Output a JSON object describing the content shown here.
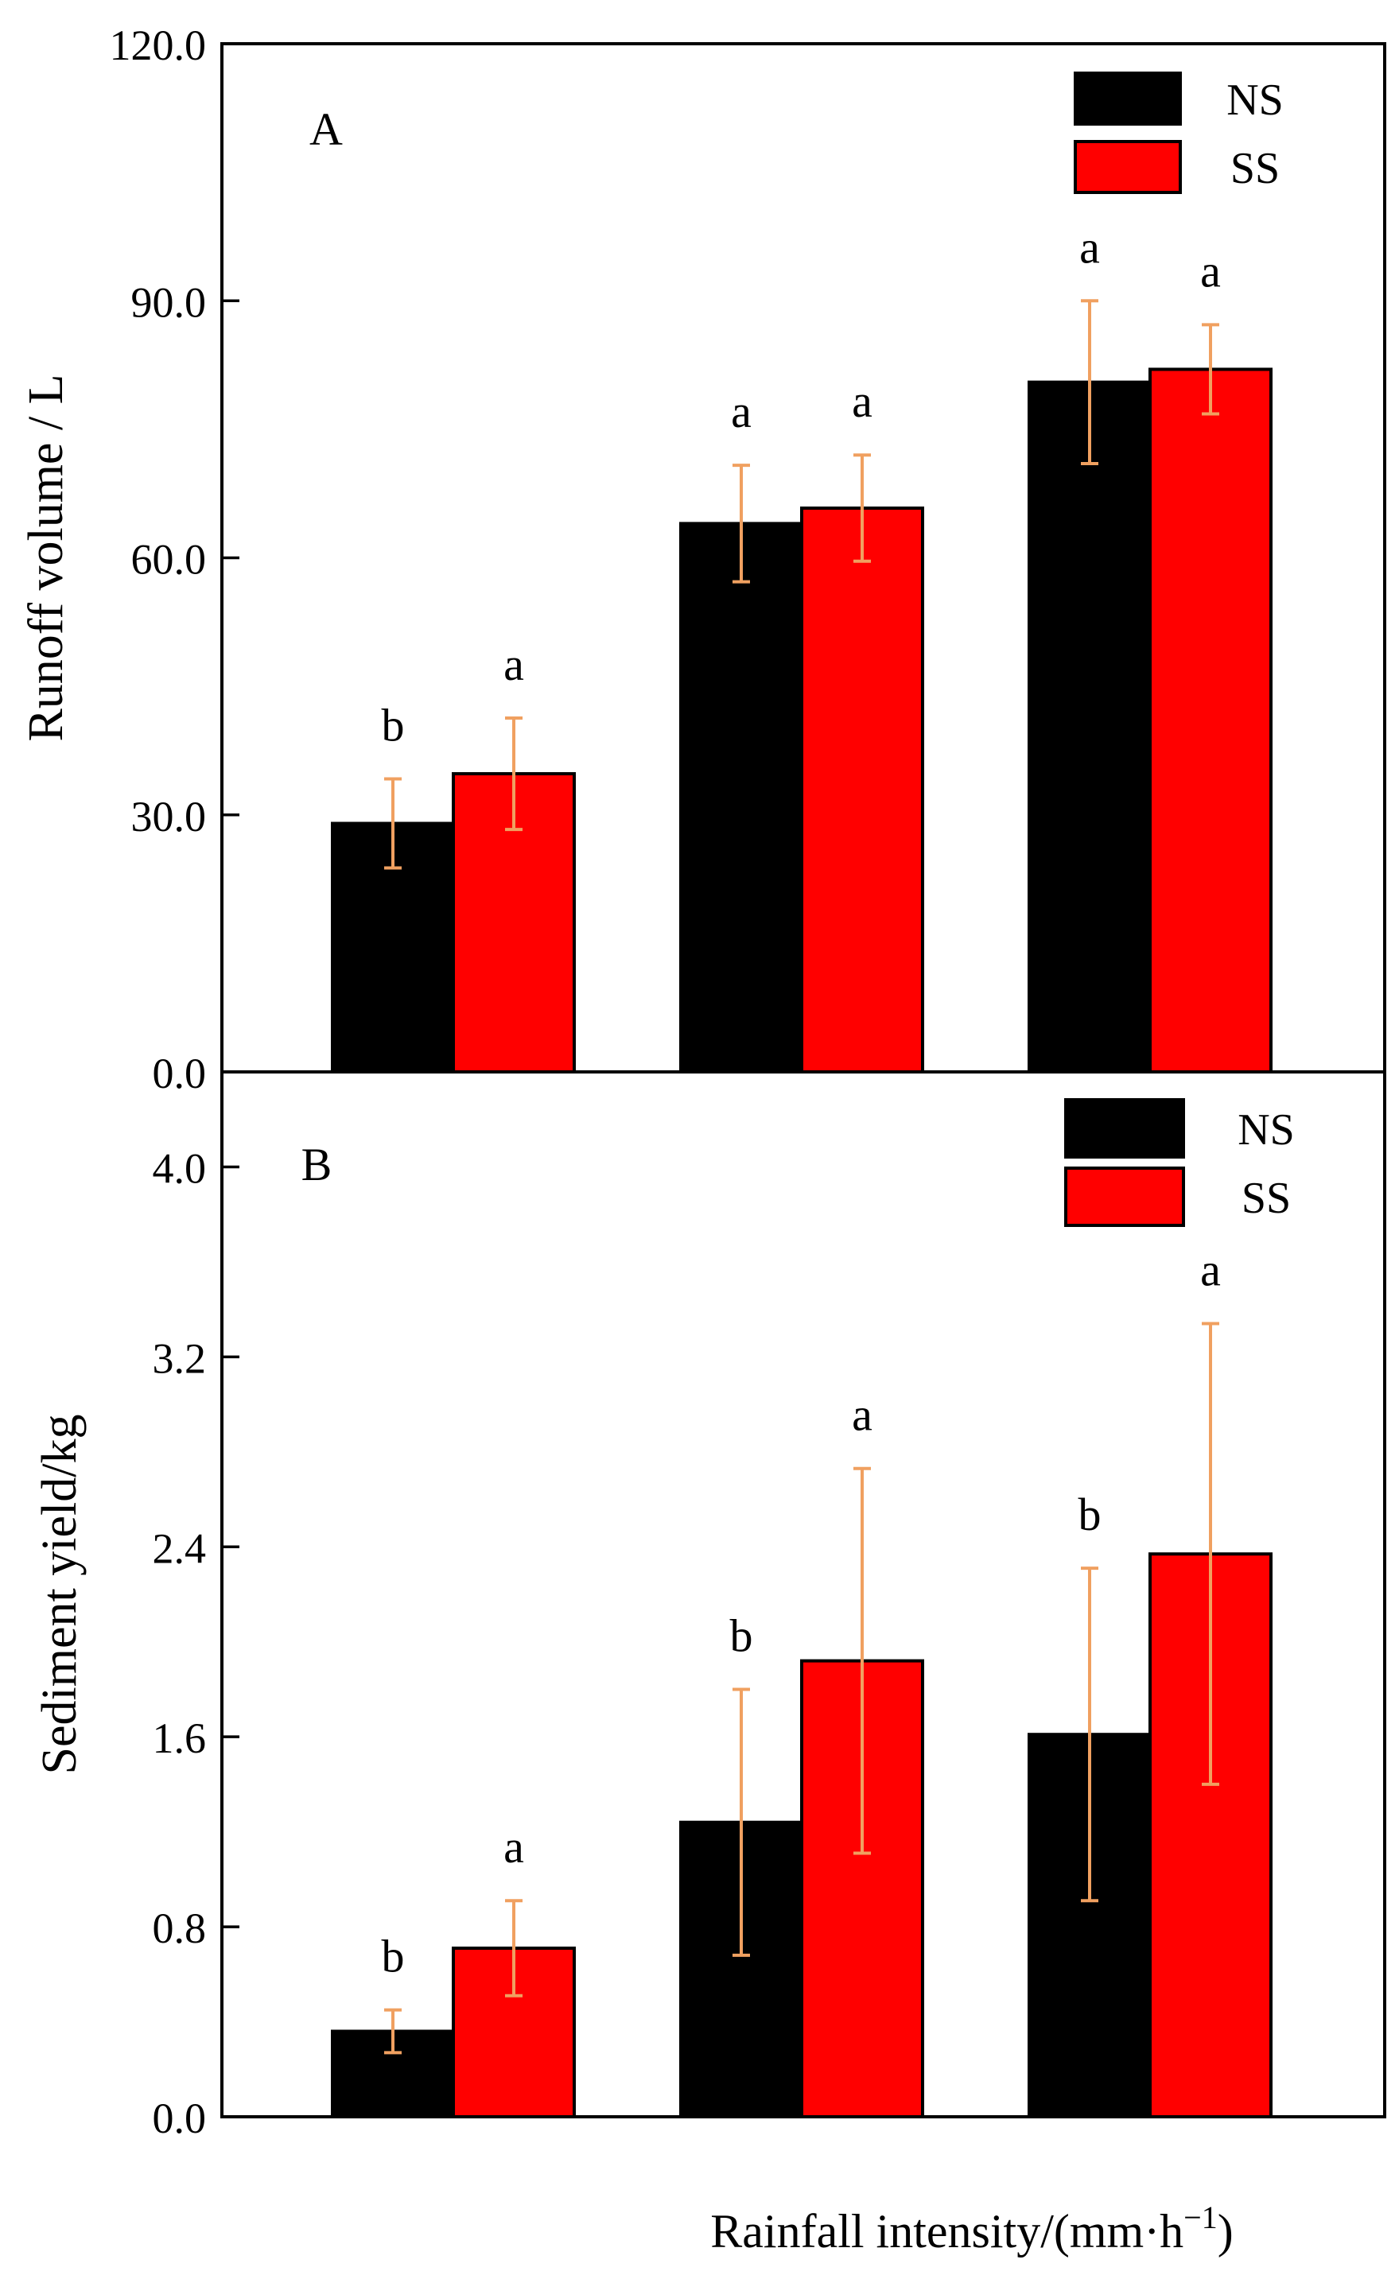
{
  "colors": {
    "ns": "#000000",
    "ss": "#ff0000",
    "error_bar": "#f0a060",
    "frame": "#000000"
  },
  "xlabel": "Rainfall intensity/(mm·h",
  "xlabel_sup": "−1",
  "xlabel_close": ")",
  "chart_data": [
    {
      "type": "bar",
      "panel_label": "A",
      "ylabel": "Runoff volume / L",
      "ylim": [
        0,
        120
      ],
      "yticks": [
        "0.0",
        "30.0",
        "60.0",
        "90.0",
        "120.0"
      ],
      "ytick_values": [
        0,
        30,
        60,
        90,
        120
      ],
      "categories": [
        "",
        "",
        ""
      ],
      "legend": [
        "NS",
        "SS"
      ],
      "legend_position": "top-right",
      "series": [
        {
          "name": "NS",
          "values": [
            29.0,
            64.0,
            80.5
          ],
          "errors": [
            5.2,
            6.8,
            9.5
          ],
          "letters": [
            "b",
            "a",
            "a"
          ]
        },
        {
          "name": "SS",
          "values": [
            34.8,
            65.8,
            82.0
          ],
          "errors": [
            6.5,
            6.2,
            5.2
          ],
          "letters": [
            "a",
            "a",
            "a"
          ]
        }
      ]
    },
    {
      "type": "bar",
      "panel_label": "B",
      "ylabel": "Sediment yield/kg",
      "ylim": [
        0,
        4.4
      ],
      "yticks": [
        "0.0",
        "0.8",
        "1.6",
        "2.4",
        "3.2",
        "4.0"
      ],
      "ytick_values": [
        0,
        0.8,
        1.6,
        2.4,
        3.2,
        4.0
      ],
      "categories": [
        "",
        "",
        ""
      ],
      "legend": [
        "NS",
        "SS"
      ],
      "legend_position": "top-right",
      "series": [
        {
          "name": "NS",
          "values": [
            0.36,
            1.24,
            1.61
          ],
          "errors": [
            0.09,
            0.56,
            0.7
          ],
          "letters": [
            "b",
            "b",
            "b"
          ]
        },
        {
          "name": "SS",
          "values": [
            0.71,
            1.92,
            2.37
          ],
          "errors": [
            0.2,
            0.81,
            0.97
          ],
          "letters": [
            "a",
            "a",
            "a"
          ]
        }
      ]
    }
  ]
}
